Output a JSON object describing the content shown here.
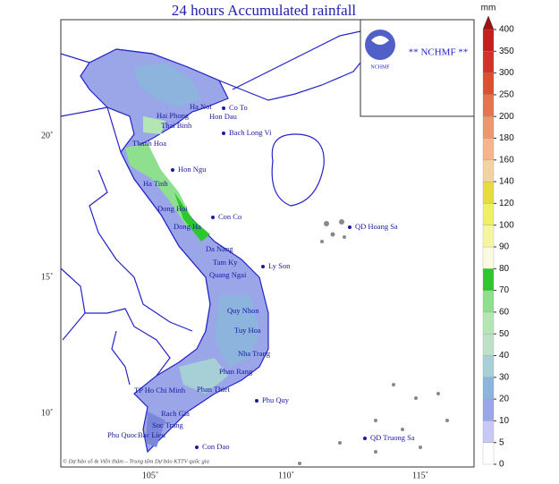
{
  "title": "24 hours Accumulated rainfall",
  "logo": {
    "text": "** NCHMF **",
    "small": "NCHMF"
  },
  "footer": "© Dự báo số & Viễn thám – Trung tâm Dự báo KTTV quốc gia",
  "lat_labels": [
    "20˚",
    "15˚",
    "10˚"
  ],
  "lon_labels": [
    "105˚",
    "110˚",
    "115˚"
  ],
  "colorbar": {
    "unit": "mm",
    "levels": [
      0,
      5,
      10,
      20,
      30,
      40,
      50,
      60,
      70,
      80,
      90,
      100,
      120,
      140,
      160,
      180,
      200,
      250,
      300,
      350,
      400
    ],
    "colors": [
      "#ffffff",
      "#c8c8f5",
      "#9aa6e8",
      "#8cb4dc",
      "#a6cfd6",
      "#bfe0c8",
      "#b4e6b4",
      "#8ee08e",
      "#2ec82e",
      "#fafae0",
      "#f5f5a0",
      "#f0f064",
      "#e6dc3c",
      "#f2d2a0",
      "#f5b48c",
      "#ee966e",
      "#e67350",
      "#dc5032",
      "#d23228",
      "#c41e1e"
    ]
  },
  "places": [
    "Co To",
    "Ha Noi",
    "Hai Phong",
    "Hon Dau",
    "Thai Binh",
    "Bach Long Vi",
    "Thanh Hoa",
    "Hon Ngu",
    "Ha Tinh",
    "Dong Hoi",
    "Con Co",
    "Dong Ha",
    "Da Nang",
    "Tam Ky",
    "Ly Son",
    "Quang Ngai",
    "QD Hoang Sa",
    "Quy Nhon",
    "Tuy Hoa",
    "Nha Trang",
    "Phan Rang",
    "Phan Thiet",
    "Phu Quy",
    "TP Ho Chi Minh",
    "Rach Gia",
    "Soc Trang",
    "Phu Quoc",
    "Bac Lieu",
    "Con Dao",
    "QD Truong Sa"
  ]
}
